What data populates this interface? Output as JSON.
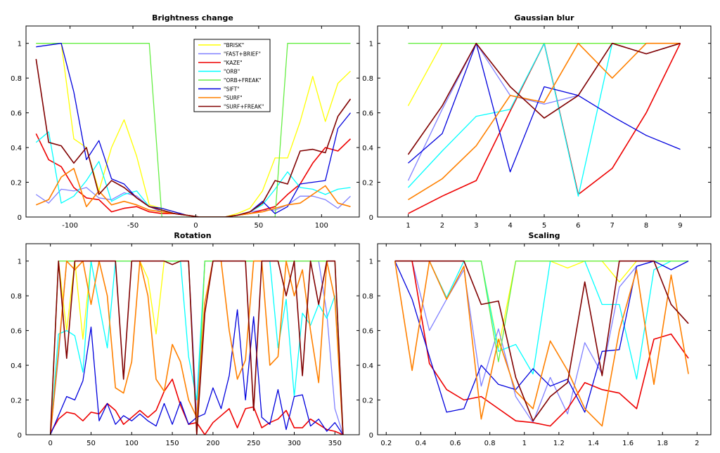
{
  "colors": {
    "BRISK": "#ffff00",
    "FAST+BRIEF": "#8080ff",
    "KAZE": "#ee0000",
    "ORB": "#00ffff",
    "ORB+FREAK": "#66ee44",
    "SIFT": "#0000dd",
    "SURF": "#ff8000",
    "SURF+FREAK": "#800000"
  },
  "chart_data": [
    {
      "type": "line",
      "title": "Brightness change",
      "xlabel": "",
      "ylabel": "",
      "xlim": [
        -135,
        130
      ],
      "ylim": [
        0,
        1.1
      ],
      "xticks": [
        -100,
        -50,
        0,
        50,
        100
      ],
      "xtick_labels": [
        "-100",
        "-50",
        "0",
        "50",
        "100"
      ],
      "yticks": [
        0,
        0.2,
        0.4,
        0.6,
        0.8,
        1
      ],
      "ytick_labels": [
        "0",
        "0.2",
        "0.4",
        "0.6",
        "0.8",
        "1"
      ],
      "legend": {
        "placement": "top-center",
        "entries": [
          "\"BRISK\"",
          "\"FAST+BRIEF\"",
          "\"KAZE\"",
          "\"ORB\"",
          "\"ORB+FREAK\"",
          "\"SIFT\"",
          "\"SURF\"",
          "\"SURF+FREAK\""
        ]
      },
      "x": [
        -127,
        -117,
        -107,
        -97,
        -87,
        -77,
        -67,
        -57,
        -47,
        -37,
        -27,
        -17,
        -7,
        3,
        13,
        23,
        33,
        43,
        53,
        63,
        73,
        83,
        93,
        103,
        113,
        123
      ],
      "series": [
        {
          "name": "BRISK",
          "values": [
            1.0,
            1.0,
            1.0,
            0.45,
            0.4,
            0.15,
            0.4,
            0.56,
            0.35,
            0.07,
            0.05,
            0.03,
            0.01,
            0.0,
            0.0,
            0.0,
            0.02,
            0.05,
            0.15,
            0.34,
            0.34,
            0.55,
            0.81,
            0.55,
            0.77,
            0.84
          ]
        },
        {
          "name": "FAST+BRIEF",
          "values": [
            0.13,
            0.08,
            0.16,
            0.15,
            0.17,
            0.11,
            0.1,
            0.14,
            0.12,
            0.06,
            0.03,
            0.02,
            0.01,
            0.0,
            0.0,
            0.0,
            0.01,
            0.03,
            0.04,
            0.04,
            0.07,
            0.12,
            0.12,
            0.1,
            0.05,
            0.12
          ]
        },
        {
          "name": "KAZE",
          "values": [
            0.48,
            0.33,
            0.29,
            0.17,
            0.11,
            0.1,
            0.03,
            0.05,
            0.06,
            0.03,
            0.02,
            0.02,
            0.01,
            0.0,
            0.0,
            0.0,
            0.01,
            0.02,
            0.04,
            0.06,
            0.13,
            0.19,
            0.31,
            0.4,
            0.38,
            0.45
          ]
        },
        {
          "name": "ORB",
          "values": [
            0.43,
            0.49,
            0.08,
            0.12,
            0.21,
            0.32,
            0.09,
            0.13,
            0.15,
            0.06,
            0.04,
            0.02,
            0.01,
            0.0,
            0.0,
            0.0,
            0.01,
            0.03,
            0.07,
            0.16,
            0.26,
            0.17,
            0.16,
            0.13,
            0.16,
            0.17
          ]
        },
        {
          "name": "ORB+FREAK",
          "values": [
            1.0,
            1.0,
            1.0,
            1.0,
            1.0,
            1.0,
            1.0,
            1.0,
            1.0,
            1.0,
            0.0,
            0.0,
            0.0,
            0.0,
            0.0,
            0.0,
            0.0,
            0.0,
            0.0,
            0.0,
            1.0,
            1.0,
            1.0,
            1.0,
            1.0,
            1.0
          ]
        },
        {
          "name": "SIFT",
          "values": [
            0.98,
            0.99,
            1.0,
            0.72,
            0.33,
            0.44,
            0.22,
            0.19,
            0.11,
            0.06,
            0.05,
            0.03,
            0.01,
            0.0,
            0.0,
            0.0,
            0.01,
            0.03,
            0.09,
            0.02,
            0.06,
            0.19,
            0.2,
            0.21,
            0.51,
            0.6
          ]
        },
        {
          "name": "SURF",
          "values": [
            0.07,
            0.1,
            0.23,
            0.28,
            0.06,
            0.15,
            0.07,
            0.09,
            0.07,
            0.04,
            0.03,
            0.02,
            0.01,
            0.0,
            0.0,
            0.0,
            0.01,
            0.02,
            0.03,
            0.05,
            0.07,
            0.08,
            0.13,
            0.18,
            0.08,
            0.06
          ]
        },
        {
          "name": "SURF+FREAK",
          "values": [
            0.91,
            0.43,
            0.41,
            0.31,
            0.4,
            0.13,
            0.21,
            0.17,
            0.11,
            0.06,
            0.04,
            0.02,
            0.01,
            0.0,
            0.0,
            0.0,
            0.01,
            0.03,
            0.08,
            0.21,
            0.19,
            0.38,
            0.39,
            0.37,
            0.58,
            0.68
          ]
        }
      ]
    },
    {
      "type": "line",
      "title": "Gaussian blur",
      "xlabel": "",
      "ylabel": "",
      "xlim": [
        0.1,
        9.9
      ],
      "ylim": [
        0,
        1.1
      ],
      "xticks": [
        1,
        2,
        3,
        4,
        5,
        6,
        7,
        8,
        9
      ],
      "xtick_labels": [
        "1",
        "2",
        "3",
        "4",
        "5",
        "6",
        "7",
        "8",
        "9"
      ],
      "yticks": [
        0,
        0.2,
        0.4,
        0.6,
        0.8,
        1
      ],
      "ytick_labels": [
        "0",
        "0.2",
        "0.4",
        "0.6",
        "0.8",
        "1"
      ],
      "x": [
        1,
        2,
        3,
        4,
        5,
        6,
        7,
        8,
        9
      ],
      "series": [
        {
          "name": "BRISK",
          "values": [
            0.64,
            1.0,
            1.0,
            1.0,
            1.0,
            1.0,
            1.0,
            1.0,
            1.0
          ]
        },
        {
          "name": "FAST+BRIEF",
          "values": [
            0.21,
            0.62,
            1.0,
            0.7,
            0.65,
            0.7,
            1.0,
            0.94,
            1.0
          ]
        },
        {
          "name": "KAZE",
          "values": [
            0.02,
            0.12,
            0.21,
            0.61,
            1.0,
            0.13,
            0.28,
            0.6,
            1.0
          ]
        },
        {
          "name": "ORB",
          "values": [
            0.17,
            0.38,
            0.58,
            0.62,
            1.0,
            0.12,
            1.0,
            1.0,
            1.0
          ]
        },
        {
          "name": "ORB+FREAK",
          "values": [
            1.0,
            1.0,
            1.0,
            1.0,
            1.0,
            1.0,
            1.0,
            1.0,
            1.0
          ]
        },
        {
          "name": "SIFT",
          "values": [
            0.31,
            0.48,
            1.0,
            0.26,
            0.75,
            0.7,
            0.58,
            0.47,
            0.39
          ]
        },
        {
          "name": "SURF",
          "values": [
            0.1,
            0.22,
            0.41,
            0.7,
            0.66,
            1.0,
            0.8,
            1.0,
            1.0
          ]
        },
        {
          "name": "SURF+FREAK",
          "values": [
            0.36,
            0.64,
            1.0,
            0.75,
            0.57,
            0.7,
            1.0,
            0.94,
            1.0
          ]
        }
      ]
    },
    {
      "type": "line",
      "title": "Rotation",
      "xlabel": "",
      "ylabel": "",
      "xlim": [
        -30,
        380
      ],
      "ylim": [
        0,
        1.1
      ],
      "xticks": [
        0,
        50,
        100,
        150,
        200,
        250,
        300,
        350
      ],
      "xtick_labels": [
        "0",
        "50",
        "100",
        "150",
        "200",
        "250",
        "300",
        "350"
      ],
      "yticks": [
        0,
        0.2,
        0.4,
        0.6,
        0.8,
        1
      ],
      "ytick_labels": [
        "0",
        "0.2",
        "0.4",
        "0.6",
        "0.8",
        "1"
      ],
      "x": [
        0,
        10,
        20,
        30,
        40,
        50,
        60,
        70,
        80,
        90,
        100,
        110,
        120,
        130,
        140,
        150,
        160,
        170,
        180,
        190,
        200,
        210,
        220,
        230,
        240,
        250,
        260,
        270,
        280,
        290,
        300,
        310,
        320,
        330,
        340,
        350,
        360
      ],
      "series": [
        {
          "name": "BRISK",
          "values": [
            0.0,
            1.0,
            0.6,
            1.0,
            0.55,
            1.0,
            1.0,
            1.0,
            1.0,
            1.0,
            1.0,
            1.0,
            0.9,
            0.58,
            1.0,
            1.0,
            1.0,
            1.0,
            0.0,
            1.0,
            1.0,
            1.0,
            1.0,
            1.0,
            1.0,
            1.0,
            1.0,
            1.0,
            1.0,
            1.0,
            1.0,
            1.0,
            1.0,
            1.0,
            1.0,
            1.0,
            0.0
          ]
        },
        {
          "name": "FAST+BRIEF",
          "values": [
            0.0,
            0.45,
            1.0,
            1.0,
            1.0,
            1.0,
            1.0,
            1.0,
            1.0,
            1.0,
            1.0,
            1.0,
            1.0,
            1.0,
            1.0,
            1.0,
            1.0,
            1.0,
            0.1,
            1.0,
            1.0,
            1.0,
            1.0,
            1.0,
            1.0,
            1.0,
            1.0,
            1.0,
            1.0,
            1.0,
            1.0,
            1.0,
            1.0,
            1.0,
            0.7,
            0.15,
            0.0
          ]
        },
        {
          "name": "KAZE",
          "values": [
            0.01,
            0.09,
            0.13,
            0.12,
            0.08,
            0.13,
            0.12,
            0.18,
            0.14,
            0.06,
            0.1,
            0.14,
            0.1,
            0.14,
            0.25,
            0.32,
            0.17,
            0.06,
            0.07,
            0.0,
            0.07,
            0.11,
            0.15,
            0.04,
            0.15,
            0.16,
            0.04,
            0.07,
            0.09,
            0.14,
            0.04,
            0.04,
            0.09,
            0.06,
            0.03,
            0.02,
            0.0
          ]
        },
        {
          "name": "ORB",
          "values": [
            0.0,
            0.58,
            0.6,
            0.57,
            0.36,
            1.0,
            0.75,
            0.5,
            1.0,
            1.0,
            1.0,
            1.0,
            1.0,
            1.0,
            1.0,
            1.0,
            1.0,
            0.45,
            0.2,
            1.0,
            1.0,
            1.0,
            1.0,
            1.0,
            1.0,
            1.0,
            1.0,
            1.0,
            0.5,
            0.78,
            0.22,
            0.7,
            0.63,
            0.75,
            0.67,
            0.8,
            0.0
          ]
        },
        {
          "name": "ORB+FREAK",
          "values": [
            0.0,
            1.0,
            1.0,
            1.0,
            1.0,
            1.0,
            1.0,
            1.0,
            1.0,
            1.0,
            1.0,
            1.0,
            1.0,
            1.0,
            1.0,
            1.0,
            1.0,
            1.0,
            0.0,
            1.0,
            1.0,
            1.0,
            1.0,
            1.0,
            1.0,
            1.0,
            1.0,
            1.0,
            1.0,
            1.0,
            1.0,
            1.0,
            1.0,
            1.0,
            1.0,
            1.0,
            0.0
          ]
        },
        {
          "name": "SIFT",
          "values": [
            0.0,
            0.11,
            0.22,
            0.2,
            0.31,
            0.62,
            0.08,
            0.18,
            0.06,
            0.11,
            0.08,
            0.12,
            0.08,
            0.05,
            0.18,
            0.06,
            0.19,
            0.06,
            0.1,
            0.12,
            0.27,
            0.15,
            0.34,
            0.72,
            0.2,
            0.68,
            0.1,
            0.06,
            0.26,
            0.03,
            0.22,
            0.23,
            0.05,
            0.09,
            0.02,
            0.07,
            0.0
          ]
        },
        {
          "name": "SURF",
          "values": [
            0.0,
            0.48,
            1.0,
            0.95,
            1.0,
            0.75,
            1.0,
            0.8,
            0.27,
            0.24,
            0.42,
            1.0,
            0.8,
            0.32,
            0.25,
            0.52,
            0.42,
            0.2,
            0.1,
            0.76,
            1.0,
            1.0,
            0.6,
            0.32,
            0.43,
            1.0,
            1.0,
            0.4,
            0.45,
            1.0,
            0.8,
            0.95,
            0.6,
            0.3,
            1.0,
            0.78,
            0.0
          ]
        },
        {
          "name": "SURF+FREAK",
          "values": [
            0.0,
            1.0,
            0.44,
            1.0,
            1.0,
            1.0,
            1.0,
            1.0,
            1.0,
            0.32,
            1.0,
            1.0,
            1.0,
            1.0,
            1.0,
            0.98,
            1.0,
            1.0,
            0.0,
            0.7,
            1.0,
            1.0,
            1.0,
            1.0,
            1.0,
            0.14,
            1.0,
            1.0,
            1.0,
            0.8,
            1.0,
            0.34,
            1.0,
            0.75,
            1.0,
            1.0,
            0.0
          ]
        }
      ]
    },
    {
      "type": "line",
      "title": "Scaling",
      "xlabel": "",
      "ylabel": "",
      "xlim": [
        0.15,
        2.08
      ],
      "ylim": [
        0,
        1.1
      ],
      "xticks": [
        0.2,
        0.4,
        0.6,
        0.8,
        1,
        1.2,
        1.4,
        1.6,
        1.8,
        2
      ],
      "xtick_labels": [
        "0.2",
        "0.4",
        "0.6",
        "0.8",
        "1",
        "1.2",
        "1.4",
        "1.6",
        "1.8",
        "2"
      ],
      "yticks": [
        0,
        0.2,
        0.4,
        0.6,
        0.8,
        1
      ],
      "ytick_labels": [
        "0",
        "0.2",
        "0.4",
        "0.6",
        "0.8",
        "1"
      ],
      "x": [
        0.25,
        0.35,
        0.45,
        0.55,
        0.65,
        0.75,
        0.85,
        0.95,
        1.05,
        1.15,
        1.25,
        1.35,
        1.45,
        1.55,
        1.65,
        1.75,
        1.85,
        1.95
      ],
      "series": [
        {
          "name": "BRISK",
          "values": [
            1.0,
            1.0,
            1.0,
            1.0,
            1.0,
            1.0,
            0.5,
            1.0,
            1.0,
            1.0,
            0.96,
            1.0,
            1.0,
            0.88,
            1.0,
            1.0,
            1.0,
            1.0
          ]
        },
        {
          "name": "FAST+BRIEF",
          "values": [
            1.0,
            1.0,
            0.6,
            0.78,
            0.95,
            0.28,
            0.61,
            0.22,
            0.07,
            0.33,
            0.12,
            0.53,
            0.35,
            0.85,
            0.97,
            1.0,
            0.95,
            1.0
          ]
        },
        {
          "name": "KAZE",
          "values": [
            1.0,
            1.0,
            0.41,
            0.26,
            0.2,
            0.22,
            0.15,
            0.08,
            0.07,
            0.05,
            0.15,
            0.3,
            0.26,
            0.24,
            0.15,
            0.55,
            0.58,
            0.44
          ]
        },
        {
          "name": "ORB",
          "values": [
            1.0,
            1.0,
            1.0,
            0.79,
            1.0,
            1.0,
            0.48,
            0.52,
            0.35,
            1.0,
            1.0,
            1.0,
            0.75,
            0.75,
            0.32,
            0.95,
            1.0,
            1.0
          ]
        },
        {
          "name": "ORB+FREAK",
          "values": [
            1.0,
            1.0,
            1.0,
            1.0,
            1.0,
            1.0,
            0.42,
            1.0,
            1.0,
            1.0,
            1.0,
            1.0,
            1.0,
            1.0,
            1.0,
            1.0,
            1.0,
            1.0
          ]
        },
        {
          "name": "SIFT",
          "values": [
            1.0,
            0.78,
            0.45,
            0.13,
            0.15,
            0.4,
            0.29,
            0.26,
            0.38,
            0.28,
            0.32,
            0.13,
            0.48,
            0.49,
            0.97,
            1.0,
            0.95,
            1.0
          ]
        },
        {
          "name": "SURF",
          "values": [
            1.0,
            0.37,
            1.0,
            0.78,
            0.97,
            0.09,
            0.55,
            0.25,
            0.15,
            0.54,
            0.37,
            0.15,
            0.05,
            0.6,
            0.95,
            0.29,
            0.92,
            0.35
          ]
        },
        {
          "name": "SURF+FREAK",
          "values": [
            1.0,
            1.0,
            1.0,
            1.0,
            1.0,
            0.75,
            0.77,
            0.33,
            0.08,
            0.22,
            0.3,
            0.88,
            0.34,
            1.0,
            1.0,
            1.0,
            0.75,
            0.64
          ]
        }
      ]
    }
  ]
}
